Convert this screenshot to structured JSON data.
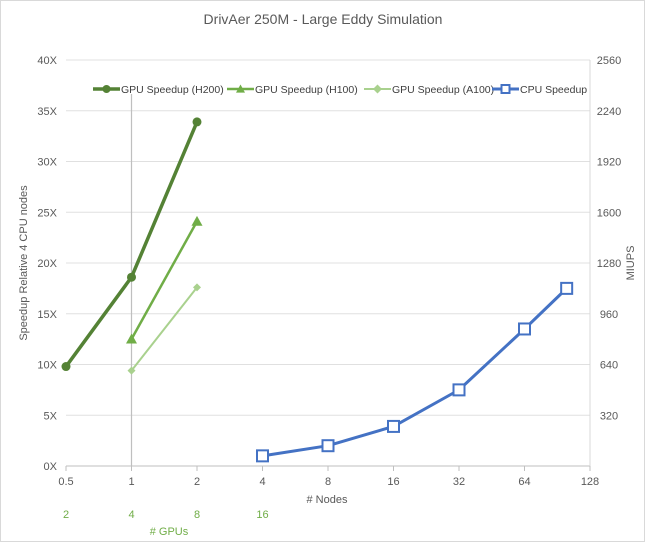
{
  "chart_data": {
    "type": "line",
    "title": "DrivAer 250M - Large Eddy Simulation",
    "xlabel": "# Nodes",
    "x2label": "# GPUs",
    "ylabel": "Speedup Relative 4 CPU nodes",
    "y2label": "MIUPS",
    "x_scale": "log2",
    "x_ticks": [
      "0.5",
      "1",
      "2",
      "4",
      "8",
      "16",
      "32",
      "64",
      "128"
    ],
    "x_tick_values": [
      0.5,
      1,
      2,
      4,
      8,
      16,
      32,
      64,
      128
    ],
    "gpu_ticks": [
      "2",
      "4",
      "8",
      "16"
    ],
    "gpu_tick_nodes": [
      0.5,
      1,
      2,
      4
    ],
    "ylim": [
      0,
      40
    ],
    "y_ticks": [
      "0X",
      "5X",
      "10X",
      "15X",
      "20X",
      "25X",
      "30X",
      "35X",
      "40X"
    ],
    "y2lim": [
      0,
      2560
    ],
    "y2_ticks": [
      "320",
      "640",
      "960",
      "1280",
      "1600",
      "1920",
      "2240",
      "2560"
    ],
    "y2_tick_values": [
      320,
      640,
      960,
      1280,
      1600,
      1920,
      2240,
      2560
    ],
    "legend_position": "top",
    "reference_line_x": 1,
    "series": [
      {
        "name": "GPU Speedup (H200)",
        "color": "#548235",
        "marker": "circle",
        "line_width": 3.5,
        "x": [
          0.5,
          1,
          2
        ],
        "values": [
          9.8,
          18.6,
          33.9
        ]
      },
      {
        "name": "GPU Speedup (H100)",
        "color": "#70ad47",
        "marker": "triangle",
        "line_width": 2.5,
        "x": [
          1,
          2
        ],
        "values": [
          12.5,
          24.1
        ]
      },
      {
        "name": "GPU Speedup (A100)",
        "color": "#a9d18e",
        "marker": "diamond",
        "line_width": 2,
        "x": [
          1,
          2
        ],
        "values": [
          9.4,
          17.6
        ]
      },
      {
        "name": "CPU Speedup",
        "color": "#4472c4",
        "marker": "square-open",
        "line_width": 3,
        "x": [
          4,
          8,
          16,
          32,
          64,
          100
        ],
        "values": [
          1.0,
          2.0,
          3.9,
          7.5,
          13.5,
          17.5
        ]
      }
    ]
  }
}
